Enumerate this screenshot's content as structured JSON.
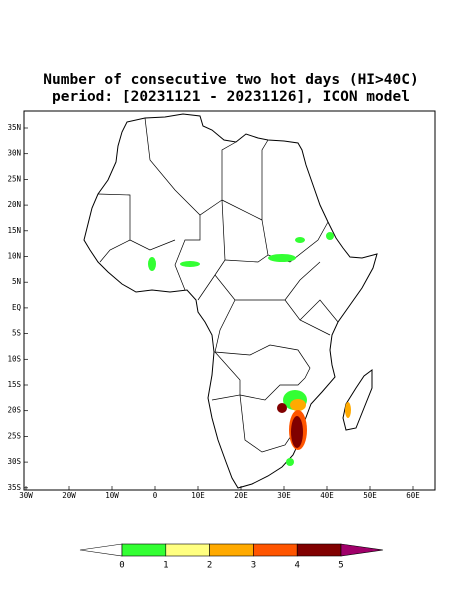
{
  "title": [
    "Number of consecutive two hot days (HI>40C)",
    "period: [20231121 - 20231126], ICON model"
  ],
  "map": {
    "lat_ticks": [
      "35N",
      "30N",
      "25N",
      "20N",
      "15N",
      "10N",
      "5N",
      "EQ",
      "5S",
      "10S",
      "15S",
      "20S",
      "25S",
      "30S",
      "35S"
    ],
    "lon_ticks": [
      "30W",
      "20W",
      "10W",
      "0",
      "10E",
      "20E",
      "30E",
      "40E",
      "50E",
      "60E"
    ]
  },
  "colorbar": {
    "ticks": [
      0,
      1,
      2,
      3,
      4,
      5
    ],
    "colors": [
      "#ffffff",
      "#33ff33",
      "#ffff80",
      "#ffaa00",
      "#ff5500",
      "#800000",
      "#a0006a"
    ]
  }
}
